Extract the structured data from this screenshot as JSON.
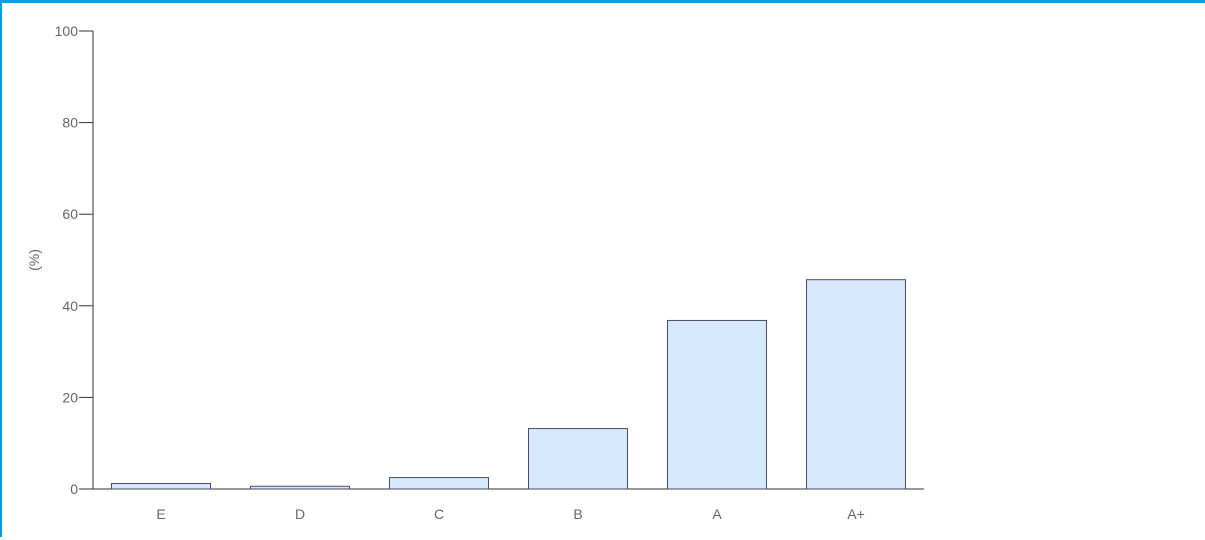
{
  "chart_data": {
    "type": "bar",
    "categories": [
      "E",
      "D",
      "C",
      "B",
      "A",
      "A+"
    ],
    "values": [
      1.2,
      0.6,
      2.5,
      13.2,
      36.8,
      45.7
    ],
    "ylabel": "(%)",
    "ylim": [
      0,
      100
    ],
    "yticks": [
      "0",
      "20",
      "40",
      "60",
      "80",
      "100"
    ],
    "ytick_values": [
      0,
      20,
      40,
      60,
      80,
      100
    ],
    "grid": false,
    "bar_color": "#d6e8fc",
    "bar_edge_color": "#4a4a6a",
    "accent": "#00a0e3"
  }
}
